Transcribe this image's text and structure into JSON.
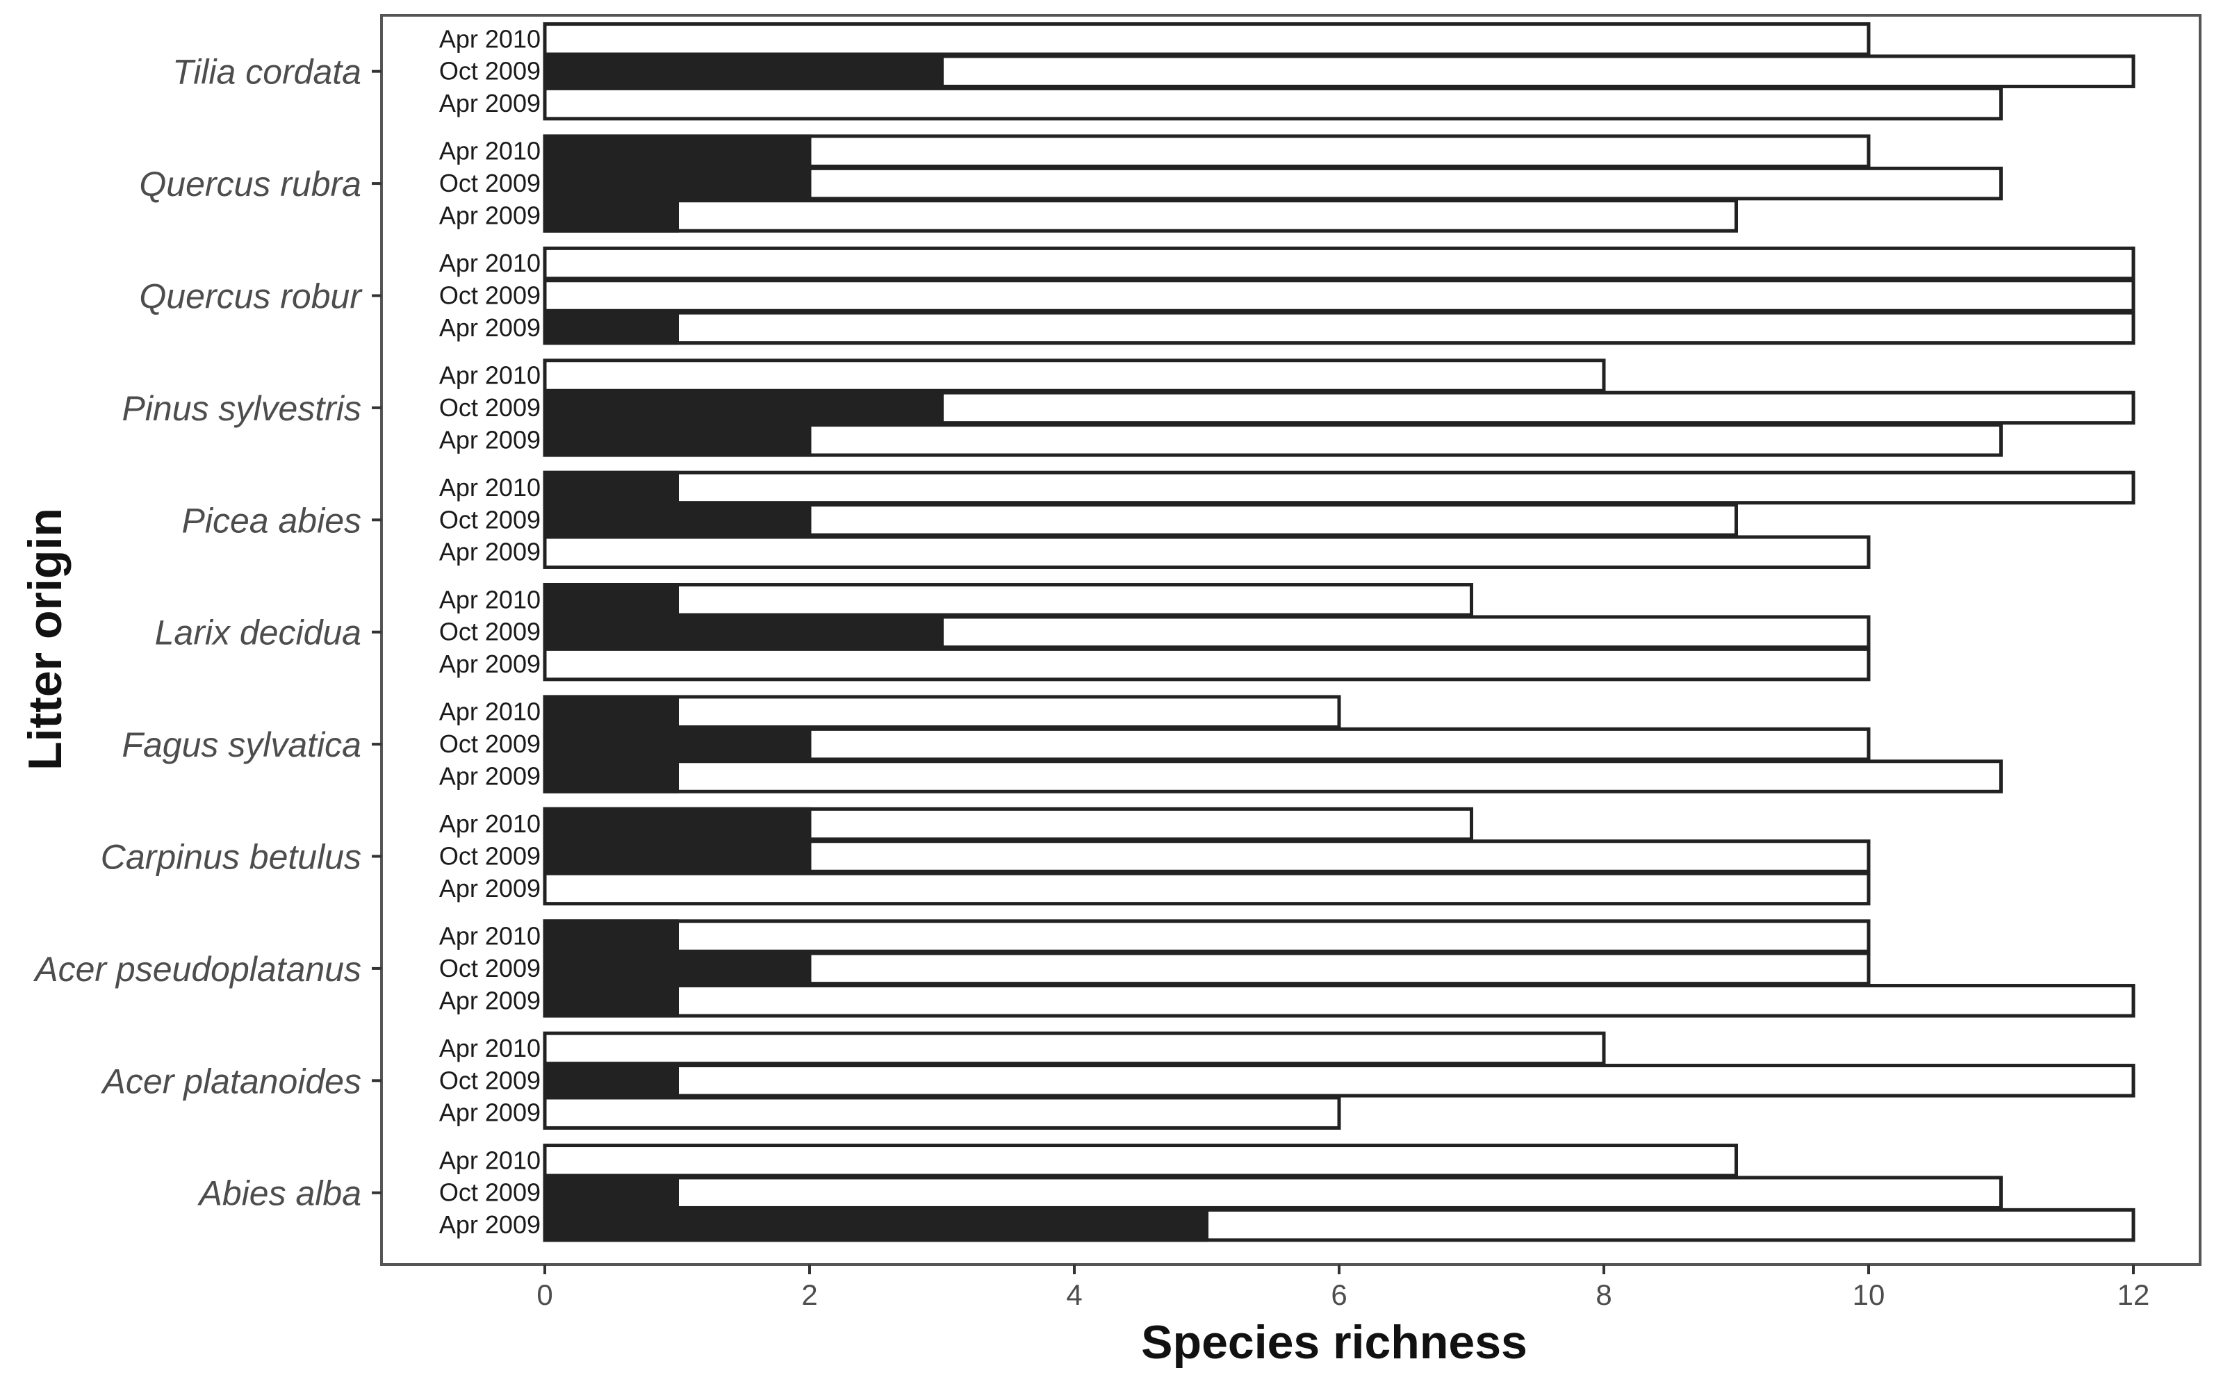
{
  "chart_data": {
    "type": "bar",
    "orientation": "horizontal",
    "title": "",
    "xlabel": "Species richness",
    "ylabel": "Litter origin",
    "xlim": [
      -1.2,
      12.4
    ],
    "xticks": [
      0,
      2,
      4,
      6,
      8,
      10,
      12
    ],
    "grid": false,
    "legend": "none",
    "colors": {
      "dark": "#222222",
      "light": "#ffffff",
      "stroke": "#222222",
      "frame": "#555555"
    },
    "categories": [
      "Tilia cordata",
      "Quercus rubra",
      "Quercus robur",
      "Pinus sylvestris",
      "Picea abies",
      "Larix decidua",
      "Fagus sylvatica",
      "Carpinus betulus",
      "Acer pseudoplatanus",
      "Acer platanoides",
      "Abies alba"
    ],
    "sampling_dates": [
      "Apr 2010",
      "Oct 2009",
      "Apr 2009"
    ],
    "series": [
      {
        "name": "Dark (filled) portion",
        "values": [
          [
            0,
            3,
            0
          ],
          [
            2,
            2,
            1
          ],
          [
            0,
            0,
            1
          ],
          [
            0,
            3,
            2
          ],
          [
            1,
            2,
            0
          ],
          [
            1,
            3,
            0
          ],
          [
            1,
            2,
            1
          ],
          [
            2,
            2,
            0
          ],
          [
            1,
            2,
            1
          ],
          [
            0,
            1,
            0
          ],
          [
            0,
            1,
            5
          ]
        ]
      },
      {
        "name": "Total species richness",
        "values": [
          [
            10,
            12,
            11
          ],
          [
            10,
            11,
            9
          ],
          [
            12,
            12,
            12
          ],
          [
            8,
            12,
            11
          ],
          [
            12,
            9,
            10
          ],
          [
            7,
            10,
            10
          ],
          [
            6,
            10,
            11
          ],
          [
            7,
            10,
            10
          ],
          [
            10,
            10,
            12
          ],
          [
            8,
            12,
            6
          ],
          [
            9,
            11,
            12
          ]
        ]
      }
    ]
  }
}
